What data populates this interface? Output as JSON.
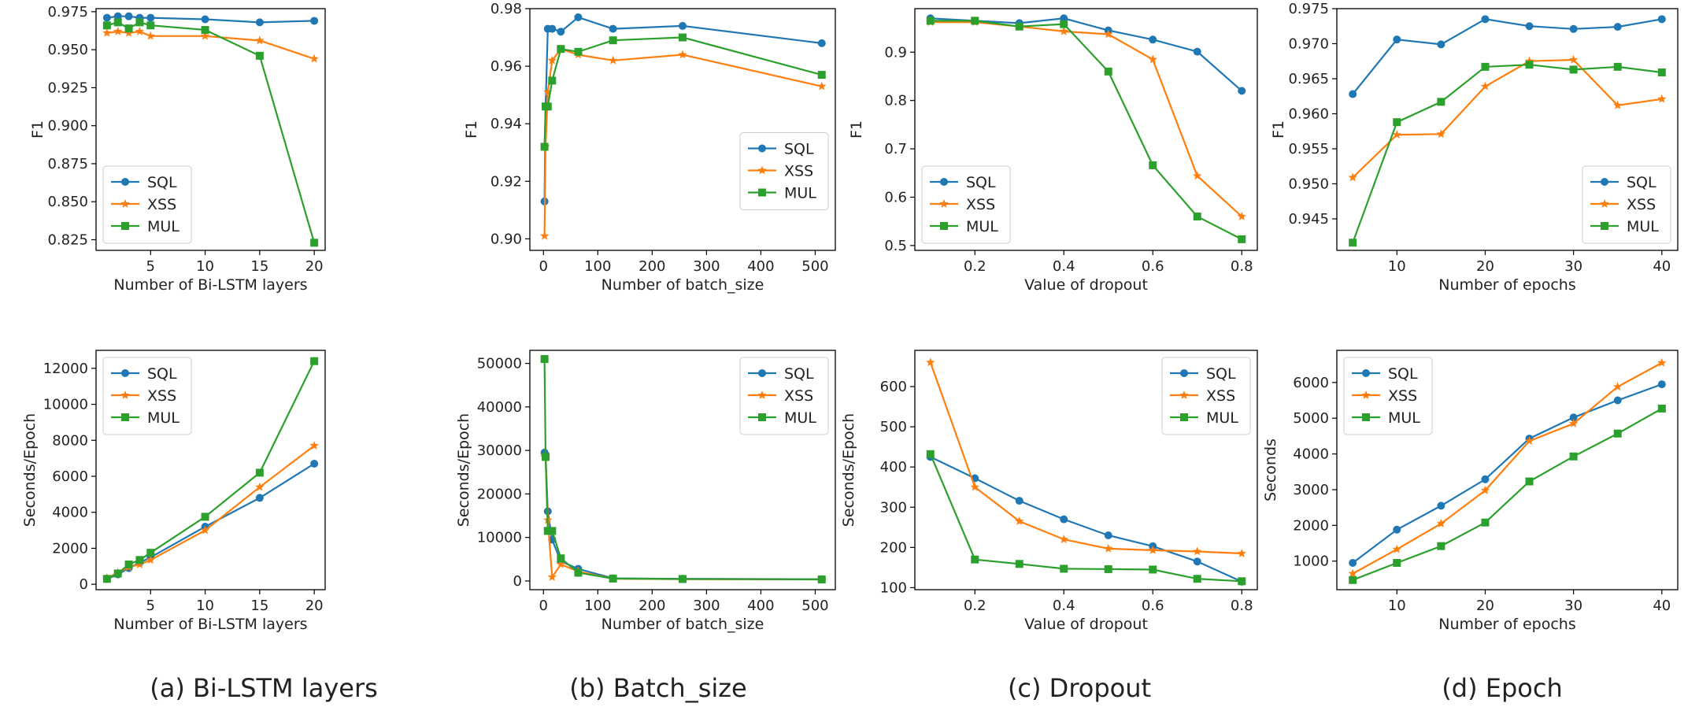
{
  "colors": {
    "SQL": "#1f77b4",
    "XSS": "#ff7f0e",
    "MUL": "#2ca02c"
  },
  "captions": [
    "(a) Bi-LSTM layers",
    "(b) Batch_size",
    "(c) Dropout",
    "(d) Epoch"
  ],
  "chart_data": [
    {
      "type": "line",
      "id": "a-top",
      "xlabel": "Number of Bi-LSTM layers",
      "ylabel": "F1",
      "xlim": [
        0,
        21
      ],
      "ylim": [
        0.818,
        0.977
      ],
      "xticks": [
        5,
        10,
        15,
        20
      ],
      "yticks": [
        0.825,
        0.85,
        0.875,
        0.9,
        0.925,
        0.95,
        0.975
      ],
      "ytick_labels": [
        "0.825",
        "0.850",
        "0.875",
        "0.900",
        "0.925",
        "0.950",
        "0.975"
      ],
      "legend": "lower-left",
      "series": [
        {
          "name": "SQL",
          "marker": "circle",
          "x": [
            1,
            2,
            3,
            4,
            5,
            10,
            15,
            20
          ],
          "values": [
            0.971,
            0.972,
            0.972,
            0.971,
            0.971,
            0.97,
            0.968,
            0.969
          ]
        },
        {
          "name": "XSS",
          "marker": "star",
          "x": [
            1,
            2,
            3,
            4,
            5,
            10,
            15,
            20
          ],
          "values": [
            0.961,
            0.962,
            0.961,
            0.962,
            0.959,
            0.959,
            0.956,
            0.944
          ]
        },
        {
          "name": "MUL",
          "marker": "square",
          "x": [
            1,
            2,
            3,
            4,
            5,
            10,
            15,
            20
          ],
          "values": [
            0.966,
            0.968,
            0.964,
            0.968,
            0.966,
            0.963,
            0.946,
            0.823
          ]
        }
      ]
    },
    {
      "type": "line",
      "id": "b-top",
      "xlabel": "Number of batch_size",
      "ylabel": "F1",
      "xlim": [
        -25,
        537
      ],
      "ylim": [
        0.896,
        0.98
      ],
      "xticks": [
        0,
        100,
        200,
        300,
        400,
        500
      ],
      "yticks": [
        0.9,
        0.92,
        0.94,
        0.96,
        0.98
      ],
      "ytick_labels": [
        "0.90",
        "0.92",
        "0.94",
        "0.96",
        "0.98"
      ],
      "legend": "center-right",
      "series": [
        {
          "name": "SQL",
          "marker": "circle",
          "x": [
            2,
            4,
            8,
            16,
            32,
            64,
            128,
            256,
            512
          ],
          "values": [
            0.913,
            0.946,
            0.973,
            0.973,
            0.972,
            0.977,
            0.973,
            0.974,
            0.968
          ]
        },
        {
          "name": "XSS",
          "marker": "star",
          "x": [
            2,
            4,
            8,
            16,
            32,
            64,
            128,
            256,
            512
          ],
          "values": [
            0.901,
            0.932,
            0.951,
            0.962,
            0.966,
            0.964,
            0.962,
            0.964,
            0.953
          ]
        },
        {
          "name": "MUL",
          "marker": "square",
          "x": [
            2,
            4,
            8,
            16,
            32,
            64,
            128,
            256,
            512
          ],
          "values": [
            0.932,
            0.946,
            0.946,
            0.955,
            0.966,
            0.965,
            0.969,
            0.97,
            0.957
          ]
        }
      ]
    },
    {
      "type": "line",
      "id": "c-top",
      "xlabel": "Value of dropout",
      "ylabel": "F1",
      "xlim": [
        0.065,
        0.835
      ],
      "ylim": [
        0.49,
        0.99
      ],
      "xticks": [
        0.2,
        0.4,
        0.6,
        0.8
      ],
      "yticks": [
        0.5,
        0.6,
        0.7,
        0.8,
        0.9
      ],
      "ytick_labels": [
        "0.5",
        "0.6",
        "0.7",
        "0.8",
        "0.9"
      ],
      "legend": "lower-left",
      "series": [
        {
          "name": "SQL",
          "marker": "circle",
          "x": [
            0.1,
            0.2,
            0.3,
            0.4,
            0.5,
            0.6,
            0.7,
            0.8
          ],
          "values": [
            0.97,
            0.965,
            0.96,
            0.97,
            0.945,
            0.926,
            0.901,
            0.82
          ]
        },
        {
          "name": "XSS",
          "marker": "star",
          "x": [
            0.1,
            0.2,
            0.3,
            0.4,
            0.5,
            0.6,
            0.7,
            0.8
          ],
          "values": [
            0.962,
            0.962,
            0.953,
            0.943,
            0.937,
            0.885,
            0.644,
            0.56
          ]
        },
        {
          "name": "MUL",
          "marker": "square",
          "x": [
            0.1,
            0.2,
            0.3,
            0.4,
            0.5,
            0.6,
            0.7,
            0.8
          ],
          "values": [
            0.965,
            0.965,
            0.953,
            0.958,
            0.86,
            0.666,
            0.56,
            0.513
          ]
        }
      ]
    },
    {
      "type": "line",
      "id": "d-top",
      "xlabel": "Number of epochs",
      "ylabel": "F1",
      "xlim": [
        3.2,
        41.8
      ],
      "ylim": [
        0.9405,
        0.975
      ],
      "xticks": [
        10,
        20,
        30,
        40
      ],
      "yticks": [
        0.945,
        0.95,
        0.955,
        0.96,
        0.965,
        0.97,
        0.975
      ],
      "ytick_labels": [
        "0.945",
        "0.950",
        "0.955",
        "0.960",
        "0.965",
        "0.970",
        "0.975"
      ],
      "legend": "lower-right",
      "series": [
        {
          "name": "SQL",
          "marker": "circle",
          "x": [
            5,
            10,
            15,
            20,
            25,
            30,
            35,
            40
          ],
          "values": [
            0.9628,
            0.9706,
            0.9699,
            0.9735,
            0.9725,
            0.9721,
            0.9724,
            0.9735
          ]
        },
        {
          "name": "XSS",
          "marker": "star",
          "x": [
            5,
            10,
            15,
            20,
            25,
            30,
            35,
            40
          ],
          "values": [
            0.9509,
            0.957,
            0.9571,
            0.9639,
            0.9675,
            0.9677,
            0.9612,
            0.9621
          ]
        },
        {
          "name": "MUL",
          "marker": "square",
          "x": [
            5,
            10,
            15,
            20,
            25,
            30,
            35,
            40
          ],
          "values": [
            0.9416,
            0.9588,
            0.9617,
            0.9667,
            0.967,
            0.9663,
            0.9667,
            0.9659
          ]
        }
      ]
    },
    {
      "type": "line",
      "id": "a-bottom",
      "xlabel": "Number of Bi-LSTM layers",
      "ylabel": "Seconds/Epoch",
      "xlim": [
        0,
        21
      ],
      "ylim": [
        -300,
        13000
      ],
      "xticks": [
        5,
        10,
        15,
        20
      ],
      "yticks": [
        0,
        2000,
        4000,
        6000,
        8000,
        10000,
        12000
      ],
      "ytick_labels": [
        "0",
        "2000",
        "4000",
        "6000",
        "8000",
        "10000",
        "12000"
      ],
      "legend": "upper-left",
      "series": [
        {
          "name": "SQL",
          "marker": "circle",
          "x": [
            1,
            2,
            3,
            4,
            5,
            10,
            15,
            20
          ],
          "values": [
            300,
            550,
            900,
            1200,
            1500,
            3200,
            4800,
            6700
          ]
        },
        {
          "name": "XSS",
          "marker": "star",
          "x": [
            1,
            2,
            3,
            4,
            5,
            10,
            15,
            20
          ],
          "values": [
            350,
            650,
            950,
            1100,
            1350,
            3000,
            5400,
            7700
          ]
        },
        {
          "name": "MUL",
          "marker": "square",
          "x": [
            1,
            2,
            3,
            4,
            5,
            10,
            15,
            20
          ],
          "values": [
            300,
            600,
            1100,
            1350,
            1750,
            3750,
            6200,
            12400
          ]
        }
      ]
    },
    {
      "type": "line",
      "id": "b-bottom",
      "xlabel": "Number of batch_size",
      "ylabel": "Seconds/Epoch",
      "xlim": [
        -25,
        537
      ],
      "ylim": [
        -2000,
        53000
      ],
      "xticks": [
        0,
        100,
        200,
        300,
        400,
        500
      ],
      "yticks": [
        0,
        10000,
        20000,
        30000,
        40000,
        50000
      ],
      "ytick_labels": [
        "0",
        "10000",
        "20000",
        "30000",
        "40000",
        "50000"
      ],
      "legend": "upper-right",
      "series": [
        {
          "name": "SQL",
          "marker": "circle",
          "x": [
            2,
            4,
            8,
            16,
            32,
            64,
            128,
            256,
            512
          ],
          "values": [
            29500,
            29000,
            16000,
            9500,
            4500,
            2800,
            600,
            500,
            400
          ]
        },
        {
          "name": "XSS",
          "marker": "star",
          "x": [
            2,
            4,
            8,
            16,
            32,
            64,
            128,
            256,
            512
          ],
          "values": [
            28500,
            28800,
            14000,
            900,
            3800,
            2200,
            500,
            400,
            350
          ]
        },
        {
          "name": "MUL",
          "marker": "square",
          "x": [
            2,
            4,
            8,
            16,
            32,
            64,
            128,
            256,
            512
          ],
          "values": [
            51000,
            28500,
            11500,
            11500,
            5200,
            1900,
            550,
            450,
            350
          ]
        }
      ]
    },
    {
      "type": "line",
      "id": "c-bottom",
      "xlabel": "Value of dropout",
      "ylabel": "Seconds/Epoch",
      "xlim": [
        0.065,
        0.835
      ],
      "ylim": [
        95,
        690
      ],
      "xticks": [
        0.2,
        0.4,
        0.6,
        0.8
      ],
      "yticks": [
        100,
        200,
        300,
        400,
        500,
        600
      ],
      "ytick_labels": [
        "100",
        "200",
        "300",
        "400",
        "500",
        "600"
      ],
      "legend": "upper-right",
      "series": [
        {
          "name": "SQL",
          "marker": "circle",
          "x": [
            0.1,
            0.2,
            0.3,
            0.4,
            0.5,
            0.6,
            0.7,
            0.8
          ],
          "values": [
            425,
            372,
            316,
            270,
            230,
            203,
            165,
            115
          ]
        },
        {
          "name": "XSS",
          "marker": "star",
          "x": [
            0.1,
            0.2,
            0.3,
            0.4,
            0.5,
            0.6,
            0.7,
            0.8
          ],
          "values": [
            660,
            350,
            265,
            220,
            197,
            193,
            190,
            185
          ]
        },
        {
          "name": "MUL",
          "marker": "square",
          "x": [
            0.1,
            0.2,
            0.3,
            0.4,
            0.5,
            0.6,
            0.7,
            0.8
          ],
          "values": [
            432,
            170,
            159,
            147,
            146,
            145,
            122,
            116
          ]
        }
      ]
    },
    {
      "type": "line",
      "id": "d-bottom",
      "xlabel": "Number of epochs",
      "ylabel": "Seconds",
      "xlim": [
        3.2,
        41.8
      ],
      "ylim": [
        200,
        6900
      ],
      "xticks": [
        10,
        20,
        30,
        40
      ],
      "yticks": [
        1000,
        2000,
        3000,
        4000,
        5000,
        6000
      ],
      "ytick_labels": [
        "1000",
        "2000",
        "3000",
        "4000",
        "5000",
        "6000"
      ],
      "legend": "upper-left",
      "series": [
        {
          "name": "SQL",
          "marker": "circle",
          "x": [
            5,
            10,
            15,
            20,
            25,
            30,
            35,
            40
          ],
          "values": [
            950,
            1880,
            2550,
            3290,
            4430,
            5020,
            5500,
            5950
          ]
        },
        {
          "name": "XSS",
          "marker": "star",
          "x": [
            5,
            10,
            15,
            20,
            25,
            30,
            35,
            40
          ],
          "values": [
            650,
            1330,
            2050,
            2980,
            4360,
            4850,
            5880,
            6550
          ]
        },
        {
          "name": "MUL",
          "marker": "square",
          "x": [
            5,
            10,
            15,
            20,
            25,
            30,
            35,
            40
          ],
          "values": [
            470,
            950,
            1420,
            2080,
            3230,
            3930,
            4570,
            5270
          ]
        }
      ]
    }
  ]
}
